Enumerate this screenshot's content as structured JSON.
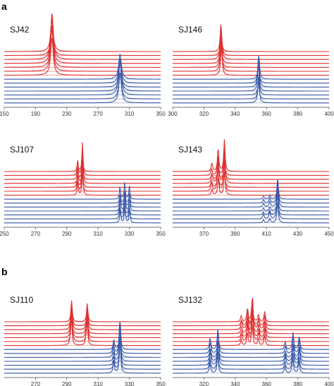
{
  "part_labels": [
    "a",
    "b"
  ],
  "colors": {
    "red": "#e03030",
    "blue": "#3a5aa8",
    "red_line": "#f0a0a0",
    "blue_line": "#a9b8d8"
  },
  "chart_data": [
    {
      "type": "line",
      "part": "a",
      "title": "SJ42",
      "xlim": [
        150,
        350
      ],
      "xticks": [
        150,
        190,
        230,
        270,
        310,
        350
      ],
      "red": {
        "traces": 7,
        "peaks": [
          [
            211,
            1.0,
            1.0
          ]
        ]
      },
      "blue": {
        "traces": 7,
        "peaks": [
          [
            298,
            0.75,
            1.0
          ]
        ]
      }
    },
    {
      "type": "line",
      "part": "a",
      "title": "SJ146",
      "xlim": [
        300,
        400
      ],
      "xticks": [
        300,
        320,
        340,
        360,
        380,
        400
      ],
      "red": {
        "traces": 7,
        "peaks": [
          [
            331,
            0.8,
            0.6
          ]
        ]
      },
      "blue": {
        "traces": 7,
        "peaks": [
          [
            355,
            0.6,
            0.6
          ]
        ]
      }
    },
    {
      "type": "line",
      "part": "a",
      "title": "SJ107",
      "xlim": [
        250,
        350
      ],
      "xticks": [
        250,
        270,
        290,
        310,
        330,
        350
      ],
      "red": {
        "traces": 7,
        "peaks": [
          [
            297,
            0.35,
            0.4
          ],
          [
            300,
            0.75,
            0.4
          ]
        ]
      },
      "blue": {
        "traces": 7,
        "peaks": [
          [
            324,
            0.3,
            0.4
          ],
          [
            327,
            0.4,
            0.4
          ],
          [
            330,
            0.3,
            0.4
          ]
        ]
      }
    },
    {
      "type": "line",
      "part": "a",
      "title": "SJ143",
      "xlim": [
        350,
        450
      ],
      "xticks": [
        370,
        390,
        410,
        430,
        450
      ],
      "red": {
        "traces": 7,
        "peaks": [
          [
            375,
            0.2,
            0.5
          ],
          [
            379,
            0.55,
            0.5
          ],
          [
            383,
            0.75,
            0.5
          ]
        ]
      },
      "blue": {
        "traces": 7,
        "peaks": [
          [
            408,
            0.1,
            0.5
          ],
          [
            412,
            0.15,
            0.5
          ],
          [
            417,
            0.7,
            0.5
          ]
        ]
      }
    },
    {
      "type": "line",
      "part": "b",
      "title": "SJ110",
      "xlim": [
        250,
        350
      ],
      "xticks": [
        270,
        290,
        310,
        330,
        350
      ],
      "red": {
        "traces": 7,
        "peaks": [
          [
            293,
            0.7,
            0.5
          ],
          [
            303,
            0.6,
            0.5
          ]
        ]
      },
      "blue": {
        "traces": 7,
        "peaks": [
          [
            320,
            0.25,
            0.5
          ],
          [
            324,
            0.75,
            0.5
          ]
        ]
      }
    },
    {
      "type": "line",
      "part": "b",
      "title": "SJ132",
      "xlim": [
        300,
        400
      ],
      "xticks": [
        320,
        340,
        360,
        380,
        400
      ],
      "red": {
        "traces": 7,
        "peaks": [
          [
            344,
            0.2,
            0.5
          ],
          [
            348,
            0.45,
            0.5
          ],
          [
            351,
            0.75,
            0.5
          ],
          [
            355,
            0.25,
            0.5
          ],
          [
            359,
            0.35,
            0.5
          ]
        ]
      },
      "blue": {
        "traces": 7,
        "peaks": [
          [
            324,
            0.3,
            0.5
          ],
          [
            329,
            0.55,
            0.5
          ],
          [
            372,
            0.2,
            0.5
          ],
          [
            377,
            0.45,
            0.5
          ],
          [
            381,
            0.35,
            0.5
          ]
        ]
      }
    }
  ]
}
